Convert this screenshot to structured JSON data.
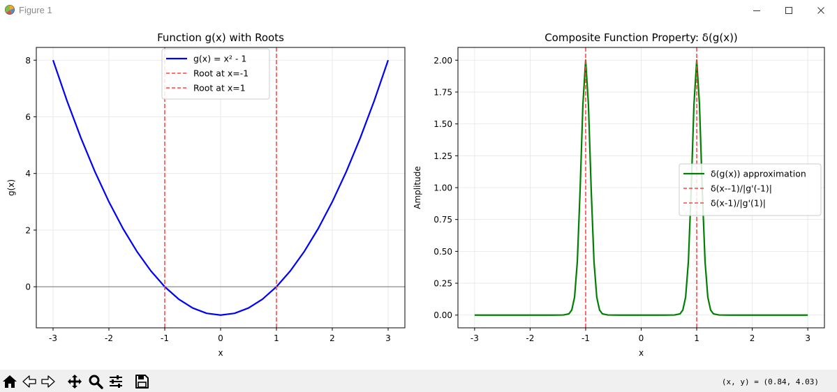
{
  "window": {
    "title": "Figure 1",
    "icons": [
      "matplotlib-logo-icon",
      "minimize-icon",
      "maximize-icon",
      "close-icon"
    ]
  },
  "toolbar": {
    "icons": [
      "home-icon",
      "back-arrow-icon",
      "forward-arrow-icon",
      "pan-icon",
      "zoom-icon",
      "configure-subplots-icon",
      "save-icon"
    ],
    "coords": "(x, y) = (0.84, 4.03)"
  },
  "chart_data": [
    {
      "type": "line",
      "title": "Function g(x) with Roots",
      "xlabel": "x",
      "ylabel": "g(x)",
      "xlim": [
        -3.3,
        3.3
      ],
      "ylim": [
        -1.45,
        8.45
      ],
      "xticks": [
        -3,
        -2,
        -1,
        0,
        1,
        2,
        3
      ],
      "xtick_labels": [
        "-3",
        "-2",
        "-1",
        "0",
        "1",
        "2",
        "3"
      ],
      "yticks": [
        0,
        2,
        4,
        6,
        8
      ],
      "ytick_labels": [
        "0",
        "2",
        "4",
        "6",
        "8"
      ],
      "grid": true,
      "legend_position": "upper center",
      "series": [
        {
          "name": "g(x) = x² - 1",
          "color": "#0000ff",
          "style": "solid",
          "x": [
            -3,
            -2.75,
            -2.5,
            -2.25,
            -2,
            -1.75,
            -1.5,
            -1.25,
            -1,
            -0.75,
            -0.5,
            -0.25,
            0,
            0.25,
            0.5,
            0.75,
            1,
            1.25,
            1.5,
            1.75,
            2,
            2.25,
            2.5,
            2.75,
            3
          ],
          "y": [
            8,
            6.5625,
            5.25,
            4.0625,
            3,
            2.0625,
            1.25,
            0.5625,
            0,
            -0.4375,
            -0.75,
            -0.9375,
            -1,
            -0.9375,
            -0.75,
            -0.4375,
            0,
            0.5625,
            1.25,
            2.0625,
            3,
            4.0625,
            5.25,
            6.5625,
            8
          ]
        }
      ],
      "vlines": [
        {
          "name": "Root at x=-1",
          "x": -1,
          "color": "#ff4040"
        },
        {
          "name": "Root at x=1",
          "x": 1,
          "color": "#ff4040"
        }
      ],
      "hlines": [
        {
          "y": 0,
          "color": "#808080"
        }
      ]
    },
    {
      "type": "line",
      "title": "Composite Function Property: δ(g(x))",
      "xlabel": "x",
      "ylabel": "Amplitude",
      "xlim": [
        -3.3,
        3.3
      ],
      "ylim": [
        -0.1,
        2.1
      ],
      "xticks": [
        -3,
        -2,
        -1,
        0,
        1,
        2,
        3
      ],
      "xtick_labels": [
        "-3",
        "-2",
        "-1",
        "0",
        "1",
        "2",
        "3"
      ],
      "yticks": [
        0,
        0.25,
        0.5,
        0.75,
        1,
        1.25,
        1.5,
        1.75,
        2
      ],
      "ytick_labels": [
        "0.00",
        "0.25",
        "0.50",
        "0.75",
        "1.00",
        "1.25",
        "1.50",
        "1.75",
        "2.00"
      ],
      "grid": true,
      "legend_position": "center right",
      "series": [
        {
          "name": "δ(g(x)) approximation",
          "color": "#008000",
          "style": "solid",
          "x": [
            -3,
            -1.6,
            -1.4,
            -1.3,
            -1.25,
            -1.2,
            -1.15,
            -1.1,
            -1.05,
            -1,
            -0.95,
            -0.9,
            -0.85,
            -0.8,
            -0.75,
            -0.7,
            -0.6,
            -0.4,
            0,
            0.4,
            0.6,
            0.7,
            0.75,
            0.8,
            0.85,
            0.9,
            0.95,
            1,
            1.05,
            1.1,
            1.15,
            1.2,
            1.25,
            1.3,
            1.4,
            1.6,
            3
          ],
          "y": [
            0,
            0,
            0.001,
            0.01,
            0.04,
            0.14,
            0.42,
            0.98,
            1.65,
            2.0,
            1.65,
            0.98,
            0.42,
            0.14,
            0.04,
            0.01,
            0.001,
            0,
            0,
            0,
            0.001,
            0.01,
            0.04,
            0.14,
            0.42,
            0.98,
            1.65,
            2.0,
            1.65,
            0.98,
            0.42,
            0.14,
            0.04,
            0.01,
            0.001,
            0,
            0
          ]
        }
      ],
      "vlines": [
        {
          "name": "δ(x--1)/|g'(-1)|",
          "x": -1,
          "color": "#ff4040"
        },
        {
          "name": "δ(x-1)/|g'(1)|",
          "x": 1,
          "color": "#ff4040"
        }
      ],
      "hlines": []
    }
  ]
}
